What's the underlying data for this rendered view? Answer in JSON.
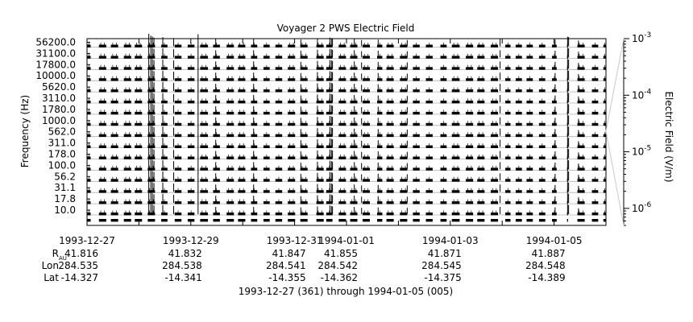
{
  "chart_data": {
    "type": "line",
    "title": "Voyager 2 PWS Electric Field",
    "ylabel": "Frequency (Hz)",
    "ylabel_right": "Electric Field (V/m)",
    "xlabel": "1993-12-27 (361) through 1994-01-05 (005)",
    "channels_hz": [
      "10.0",
      "17.8",
      "31.1",
      "56.2",
      "100.0",
      "178.0",
      "311.0",
      "562.0",
      "1000.0",
      "1780.0",
      "3110.0",
      "5620.0",
      "10000.0",
      "17800.0",
      "31100.0",
      "56200.0"
    ],
    "right_axis": {
      "scale": "log",
      "range": [
        5e-07,
        0.001
      ],
      "tick_labels": [
        {
          "mantissa": "10",
          "exp": "-6",
          "value": 1e-06
        },
        {
          "mantissa": "10",
          "exp": "-5",
          "value": 1e-05
        },
        {
          "mantissa": "10",
          "exp": "-4",
          "value": 0.0001
        },
        {
          "mantissa": "10",
          "exp": "-3",
          "value": 0.001
        }
      ]
    },
    "x_axis": {
      "unit": "days",
      "range": [
        "1993-12-27",
        "1994-01-06"
      ],
      "ticks": [
        {
          "date": "1993-12-27",
          "labeled": true
        },
        {
          "date": "1993-12-28",
          "labeled": false
        },
        {
          "date": "1993-12-29",
          "labeled": true
        },
        {
          "date": "1993-12-30",
          "labeled": false
        },
        {
          "date": "1993-12-31",
          "labeled": true
        },
        {
          "date": "1994-01-01",
          "labeled": true
        },
        {
          "date": "1994-01-02",
          "labeled": false
        },
        {
          "date": "1994-01-03",
          "labeled": true
        },
        {
          "date": "1994-01-04",
          "labeled": false
        },
        {
          "date": "1994-01-05",
          "labeled": true
        }
      ]
    },
    "ephemeris_rows": [
      {
        "label": "R",
        "subscript": "AU",
        "values": [
          "41.816",
          "41.832",
          "41.847",
          "41.855",
          "41.871",
          "41.887"
        ]
      },
      {
        "label": "Lon",
        "subscript": "",
        "values": [
          "284.535",
          "284.538",
          "284.541",
          "284.542",
          "284.545",
          "284.548"
        ]
      },
      {
        "label": "Lat",
        "subscript": "",
        "values": [
          "-14.327",
          "-14.341",
          "-14.355",
          "-14.362",
          "-14.375",
          "-14.389"
        ]
      }
    ],
    "ephemeris_dates": [
      "1993-12-27",
      "1993-12-29",
      "1993-12-31",
      "1994-01-01",
      "1994-01-03",
      "1994-01-05"
    ],
    "data_segments_days": [
      [
        0.0,
        0.07
      ],
      [
        0.23,
        0.37
      ],
      [
        0.46,
        0.6
      ],
      [
        0.71,
        0.85
      ],
      [
        0.92,
        1.06
      ],
      [
        1.17,
        1.31
      ],
      [
        1.43,
        1.55
      ],
      [
        1.69,
        1.82
      ],
      [
        1.94,
        2.07
      ],
      [
        2.18,
        2.33
      ],
      [
        2.43,
        2.56
      ],
      [
        2.69,
        2.83
      ],
      [
        2.91,
        3.05
      ],
      [
        3.16,
        3.28
      ],
      [
        3.4,
        3.52
      ],
      [
        3.63,
        3.76
      ],
      [
        3.87,
        4.01
      ],
      [
        4.11,
        4.25
      ],
      [
        4.42,
        4.56
      ],
      [
        4.61,
        4.73
      ],
      [
        4.85,
        4.99
      ],
      [
        5.07,
        5.21
      ],
      [
        5.31,
        5.45
      ],
      [
        5.59,
        5.69
      ],
      [
        5.77,
        5.91
      ],
      [
        6.03,
        6.17
      ],
      [
        6.28,
        6.41
      ],
      [
        6.53,
        6.66
      ],
      [
        6.81,
        6.93
      ],
      [
        7.03,
        7.18
      ],
      [
        7.3,
        7.44
      ],
      [
        7.52,
        7.66
      ],
      [
        7.78,
        7.92
      ],
      [
        8.06,
        8.16
      ],
      [
        8.26,
        8.38
      ],
      [
        8.47,
        8.59
      ],
      [
        8.71,
        8.83
      ],
      [
        8.96,
        9.05
      ],
      [
        9.25,
        9.27
      ],
      [
        9.45,
        9.59
      ],
      [
        9.73,
        9.85
      ],
      [
        9.95,
        10.0
      ]
    ],
    "spikes_days": [
      {
        "day": 1.19,
        "reach": 1.6
      },
      {
        "day": 1.23,
        "reach": 1.2
      },
      {
        "day": 1.26,
        "reach": 1.0
      },
      {
        "day": 1.29,
        "reach": 0.8
      },
      {
        "day": 1.46,
        "reach": 0.9
      },
      {
        "day": 1.67,
        "reach": 0.7
      },
      {
        "day": 2.14,
        "reach": 1.5
      },
      {
        "day": 2.48,
        "reach": 0.5
      },
      {
        "day": 3.21,
        "reach": 0.5
      },
      {
        "day": 4.12,
        "reach": 0.4
      },
      {
        "day": 4.44,
        "reach": 0.6
      },
      {
        "day": 4.68,
        "reach": 0.8
      },
      {
        "day": 4.71,
        "reach": 0.7
      },
      {
        "day": 4.73,
        "reach": 0.6
      },
      {
        "day": 5.15,
        "reach": 0.5
      },
      {
        "day": 5.29,
        "reach": 0.3
      },
      {
        "day": 5.61,
        "reach": 0.4
      },
      {
        "day": 6.17,
        "reach": 0.3
      },
      {
        "day": 7.96,
        "reach": 0.5
      },
      {
        "day": 9.02,
        "reach": 0.4
      },
      {
        "day": 9.26,
        "reach": 1.0
      },
      {
        "day": 9.28,
        "reach": 0.9
      },
      {
        "day": 9.47,
        "reach": 0.2
      }
    ]
  }
}
